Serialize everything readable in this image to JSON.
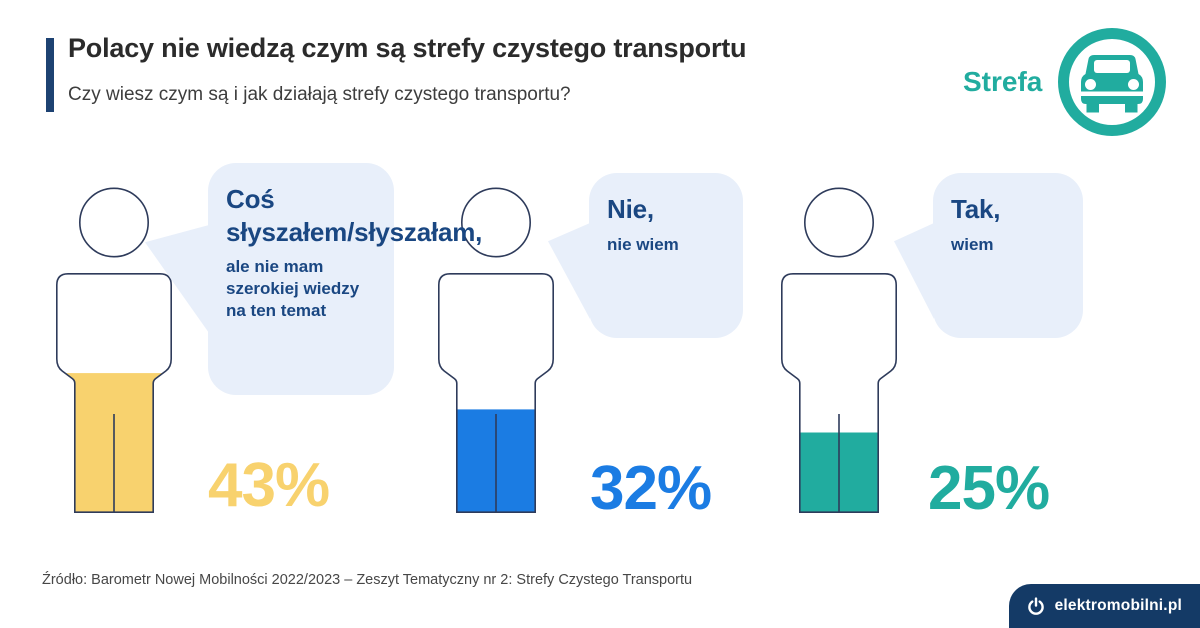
{
  "header": {
    "title": "Polacy nie wiedzą czym są strefy czystego transportu",
    "subtitle": "Czy wiesz czym są i jak działają strefy czystego transportu?"
  },
  "logo": {
    "label": "Strefa"
  },
  "chart_data": {
    "type": "bar",
    "variant": "pictogram-people-fill",
    "title": "Polacy nie wiedzą czym są strefy czystego transportu",
    "question": "Czy wiesz czym są i jak działają strefy czystego transportu?",
    "categories": [
      "Coś słyszałem/słyszałam, ale nie mam szerokiej wiedzy na ten temat",
      "Nie, nie wiem",
      "Tak, wiem"
    ],
    "values": [
      43,
      32,
      25
    ],
    "unit": "%",
    "colors": [
      "#F8D26E",
      "#1B7CE3",
      "#21AC9F"
    ]
  },
  "figures": [
    {
      "bubble_title": "Coś słyszałem/słyszałam,",
      "bubble_sub": "ale nie mam szerokiej wiedzy na ten temat",
      "percent": "43%",
      "value": 43,
      "color": "#F8D26E"
    },
    {
      "bubble_title": "Nie,",
      "bubble_sub": "nie wiem",
      "percent": "32%",
      "value": 32,
      "color": "#1B7CE3"
    },
    {
      "bubble_title": "Tak,",
      "bubble_sub": "wiem",
      "percent": "25%",
      "value": 25,
      "color": "#21AC9F"
    }
  ],
  "footer": {
    "source": "Źródło: Barometr Nowej Mobilności 2022/2023 – Zeszyt Tematyczny nr 2: Strefy Czystego Transportu",
    "brand": "elektromobilni.pl"
  }
}
